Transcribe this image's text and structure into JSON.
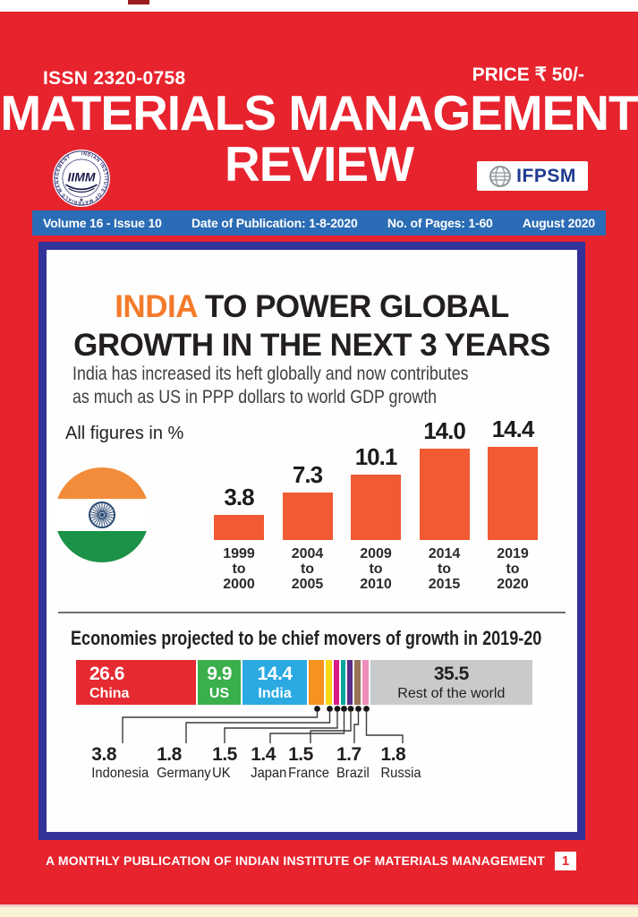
{
  "page": {
    "background_red": "#e7232e",
    "cream_strip": "#faf4d6",
    "top_tab_color": "#9b1c20"
  },
  "masthead": {
    "issn": "ISSN 2320-0758",
    "price": "PRICE ₹ 50/-",
    "title_line1": "MATERIALS MANAGEMENT",
    "title_line2": "REVIEW",
    "iimm_logo": {
      "ring_text": "INDIAN INSTITUTE OF MATERIALS MANAGEMENT",
      "center": "IIMM"
    },
    "ifpsm": {
      "label": "IFPSM",
      "icon": "globe-icon"
    }
  },
  "info_bar": {
    "bg": "#2a6cb5",
    "volume": "Volume 16 - Issue 10",
    "date": "Date of Publication: 1-8-2020",
    "pages": "No. of Pages: 1-60",
    "month": "August 2020"
  },
  "infographic": {
    "border_color": "#32329a",
    "headline": {
      "highlight": "INDIA",
      "highlight_color": "#f47b2a",
      "rest": " TO POWER GLOBAL",
      "line2": "GROWTH IN THE NEXT 3 YEARS"
    },
    "subtitle_line1": "India has increased its heft globally and now contributes",
    "subtitle_line2": "as much as US in PPP dollars to world GDP growth",
    "note": "All figures in %",
    "flag_colors": {
      "saffron": "#f28c3a",
      "white": "#ffffff",
      "green": "#1b9247",
      "chakra": "#2b4a73"
    }
  },
  "chart_data": [
    {
      "type": "bar",
      "title": "",
      "unit": "%",
      "categories": [
        "1999 to 2000",
        "2004 to 2005",
        "2009 to 2010",
        "2014 to 2015",
        "2019 to 2020"
      ],
      "values": [
        3.8,
        7.3,
        10.1,
        14.0,
        14.4
      ],
      "bar_color": "#f15a33",
      "ylim": [
        0,
        15
      ],
      "grid": false,
      "value_labels": [
        "3.8",
        "7.3",
        "10.1",
        "14.0",
        "14.4"
      ]
    },
    {
      "type": "bar",
      "subtype": "stacked-horizontal",
      "title": "Economies projected to be chief movers of growth in 2019-20",
      "unit": "%",
      "series": [
        {
          "name": "China",
          "value": 26.6,
          "color": "#e62a32",
          "label_inside": true,
          "text_color": "#ffffff",
          "align": "left",
          "name_bold": true
        },
        {
          "name": "US",
          "value": 9.9,
          "color": "#3aaf4c",
          "label_inside": true,
          "text_color": "#ffffff",
          "align": "center",
          "name_bold": true
        },
        {
          "name": "India",
          "value": 14.4,
          "color": "#2baae2",
          "label_inside": true,
          "text_color": "#ffffff",
          "align": "center",
          "name_bold": true
        },
        {
          "name": "Indonesia",
          "value": 3.8,
          "color": "#f6921e",
          "label_inside": false
        },
        {
          "name": "Germany",
          "value": 1.8,
          "color": "#f9d616",
          "label_inside": false
        },
        {
          "name": "UK",
          "value": 1.5,
          "color": "#d91c87",
          "label_inside": false
        },
        {
          "name": "Japan",
          "value": 1.4,
          "color": "#0aa5a0",
          "label_inside": false
        },
        {
          "name": "France",
          "value": 1.5,
          "color": "#5c2d87",
          "label_inside": false
        },
        {
          "name": "Brazil",
          "value": 1.7,
          "color": "#9a7357",
          "label_inside": false
        },
        {
          "name": "Russia",
          "value": 1.8,
          "color": "#f08cba",
          "label_inside": false
        },
        {
          "name": "Rest of the world",
          "value": 35.5,
          "color": "#c9cacb",
          "label_inside": true,
          "text_color": "#231f20",
          "align": "center",
          "name_bold": false
        }
      ]
    }
  ],
  "footer": {
    "text": "A MONTHLY PUBLICATION OF INDIAN INSTITUTE OF MATERIALS MANAGEMENT",
    "page_number": "1"
  }
}
